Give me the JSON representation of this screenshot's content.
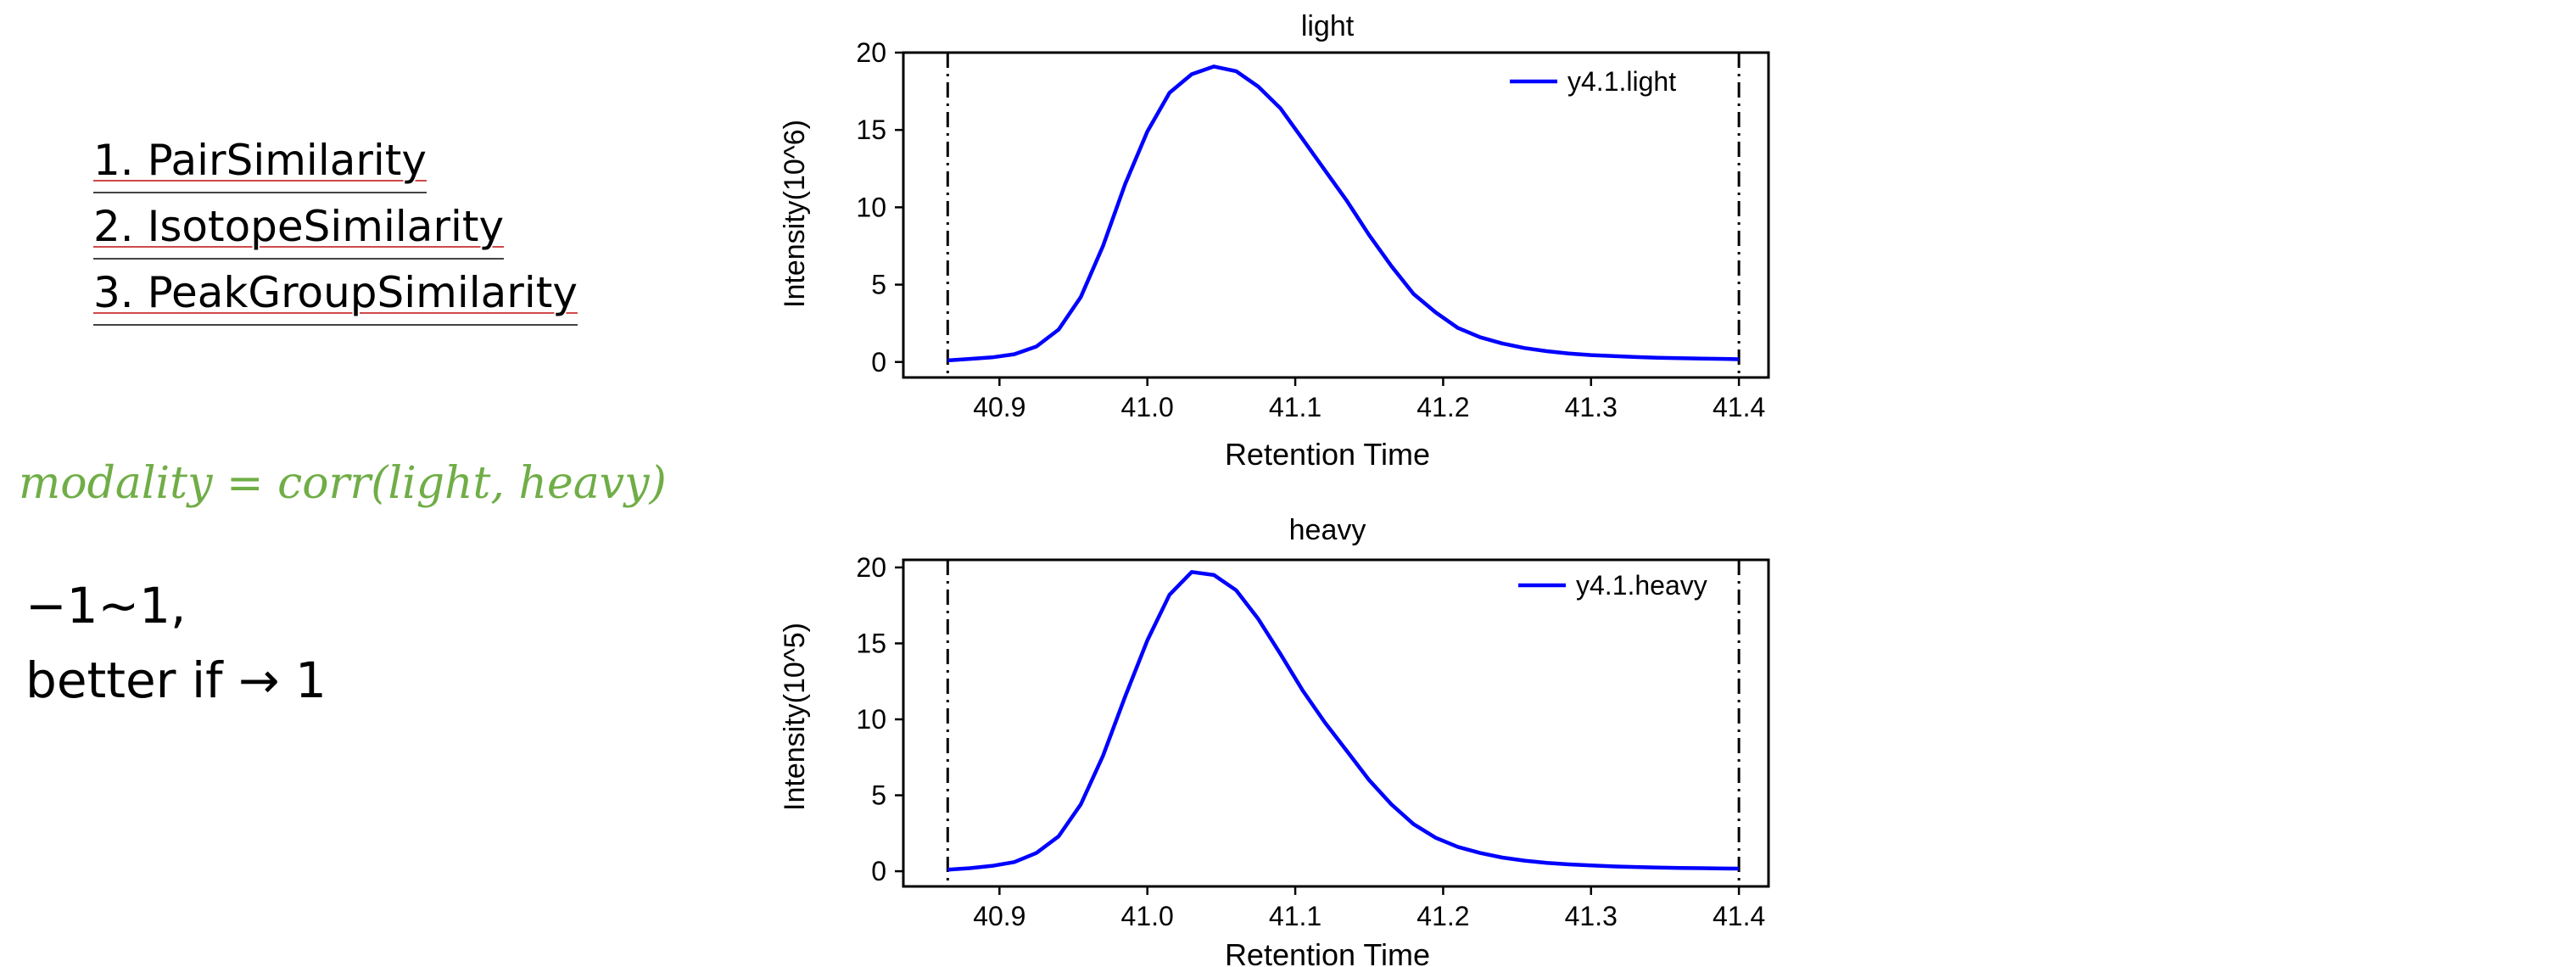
{
  "list": [
    {
      "label": "1. PairSimilarity"
    },
    {
      "label": "2. IsotopeSimilarity"
    },
    {
      "label": "3. PeakGroupSimilarity"
    }
  ],
  "formula": "modality = corr(light, heavy)",
  "range_line1": "−1~1,",
  "range_line2": "better if → 1",
  "colors": {
    "formula": "#70ad47",
    "series": "#0000ff",
    "axes": "#000000"
  },
  "chart_data": [
    {
      "type": "line",
      "title": "light",
      "xlabel": "Retention Time",
      "ylabel": "Intensity(10^6)",
      "xlim": [
        40.835,
        41.42
      ],
      "ylim": [
        -1,
        20
      ],
      "xticks": [
        "40.9",
        "41.0",
        "41.1",
        "41.2",
        "41.3",
        "41.4"
      ],
      "yticks": [
        "0",
        "5",
        "10",
        "15",
        "20"
      ],
      "vlines": [
        40.865,
        41.4
      ],
      "legend": "top-right",
      "series": [
        {
          "name": "y4.1.light",
          "x": [
            40.865,
            40.88,
            40.895,
            40.91,
            40.925,
            40.94,
            40.955,
            40.97,
            40.985,
            41.0,
            41.015,
            41.03,
            41.045,
            41.06,
            41.075,
            41.09,
            41.105,
            41.12,
            41.135,
            41.15,
            41.165,
            41.18,
            41.195,
            41.21,
            41.225,
            41.24,
            41.255,
            41.27,
            41.285,
            41.3,
            41.315,
            41.33,
            41.345,
            41.36,
            41.375,
            41.39,
            41.4
          ],
          "y": [
            0.1,
            0.2,
            0.3,
            0.5,
            1.0,
            2.1,
            4.2,
            7.5,
            11.5,
            14.9,
            17.4,
            18.6,
            19.1,
            18.8,
            17.8,
            16.4,
            14.4,
            12.4,
            10.4,
            8.2,
            6.2,
            4.4,
            3.2,
            2.2,
            1.6,
            1.2,
            0.9,
            0.7,
            0.55,
            0.45,
            0.38,
            0.32,
            0.28,
            0.25,
            0.22,
            0.2,
            0.18
          ]
        }
      ]
    },
    {
      "type": "line",
      "title": "heavy",
      "xlabel": "Retention Time",
      "ylabel": "Intensity(10^5)",
      "xlim": [
        40.835,
        41.42
      ],
      "ylim": [
        -1,
        20.5
      ],
      "xticks": [
        "40.9",
        "41.0",
        "41.1",
        "41.2",
        "41.3",
        "41.4"
      ],
      "yticks": [
        "0",
        "5",
        "10",
        "15",
        "20"
      ],
      "vlines": [
        40.865,
        41.4
      ],
      "legend": "top-right",
      "series": [
        {
          "name": "y4.1.heavy",
          "x": [
            40.865,
            40.88,
            40.895,
            40.91,
            40.925,
            40.94,
            40.955,
            40.97,
            40.985,
            41.0,
            41.015,
            41.03,
            41.045,
            41.06,
            41.075,
            41.09,
            41.105,
            41.12,
            41.135,
            41.15,
            41.165,
            41.18,
            41.195,
            41.21,
            41.225,
            41.24,
            41.255,
            41.27,
            41.285,
            41.3,
            41.315,
            41.33,
            41.345,
            41.36,
            41.375,
            41.39,
            41.4
          ],
          "y": [
            0.1,
            0.2,
            0.35,
            0.6,
            1.2,
            2.3,
            4.4,
            7.6,
            11.5,
            15.2,
            18.2,
            19.7,
            19.5,
            18.5,
            16.6,
            14.3,
            11.9,
            9.8,
            7.9,
            6.0,
            4.4,
            3.1,
            2.2,
            1.6,
            1.2,
            0.9,
            0.7,
            0.55,
            0.45,
            0.38,
            0.32,
            0.28,
            0.24,
            0.22,
            0.2,
            0.18,
            0.17
          ]
        }
      ]
    }
  ]
}
